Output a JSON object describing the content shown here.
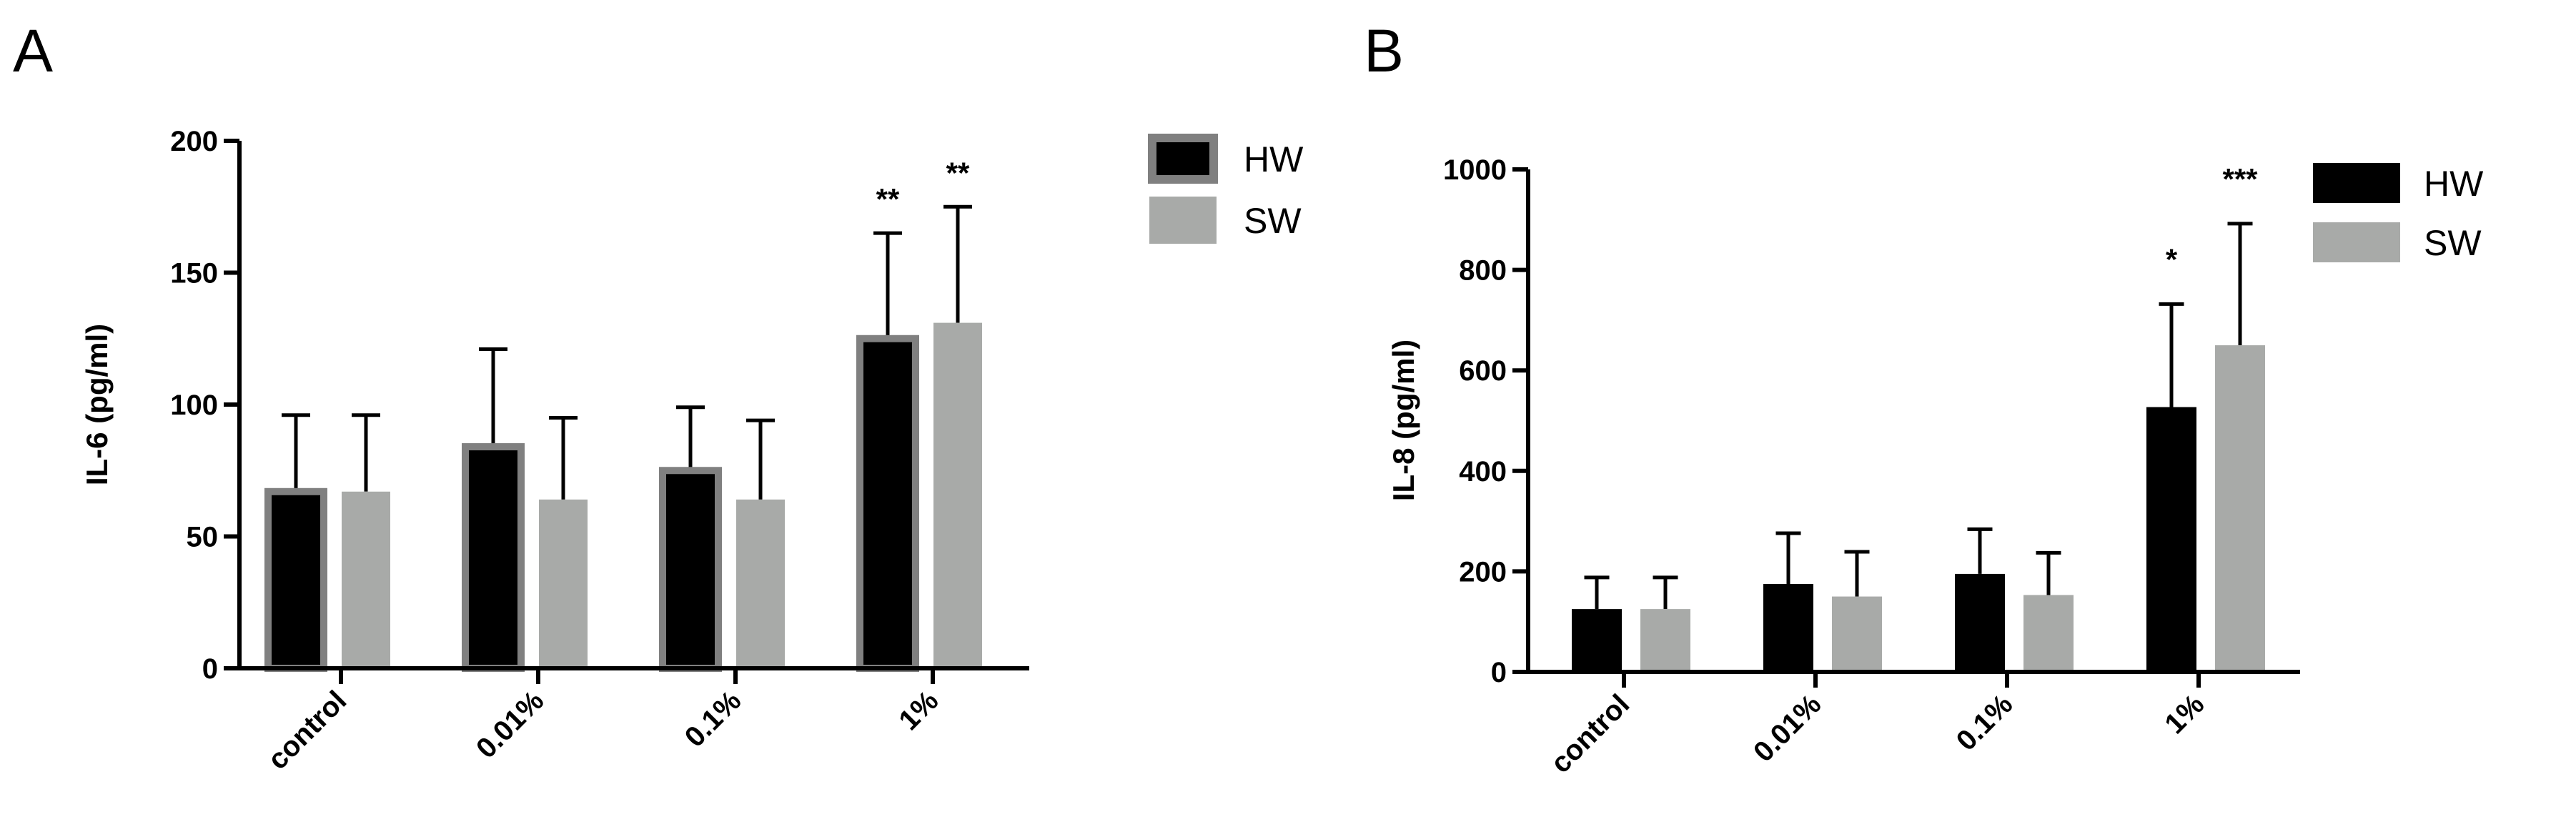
{
  "chart_data": [
    {
      "type": "bar",
      "panel_label": "A",
      "categories": [
        "control",
        "0.01%",
        "0.1%",
        "1%"
      ],
      "ylabel": "IL-6 (pg/ml)",
      "xlabel": "",
      "ylim": [
        0,
        200
      ],
      "yticks": [
        0,
        50,
        100,
        150,
        200
      ],
      "ytick_labels": [
        "0",
        "50",
        "100",
        "150",
        "200"
      ],
      "grid": false,
      "legend": "top-right",
      "series": [
        {
          "name": "HW",
          "color": "#000000",
          "outline": "#808080",
          "values": [
            67,
            84,
            75,
            125
          ],
          "errors": [
            29,
            37,
            24,
            40
          ]
        },
        {
          "name": "SW",
          "color": "#a8aaa8",
          "values": [
            67,
            64,
            64,
            131
          ],
          "errors": [
            29,
            31,
            30,
            44
          ]
        }
      ],
      "annotations": [
        {
          "category": "1%",
          "series": "HW",
          "text": "**"
        },
        {
          "category": "1%",
          "series": "SW",
          "text": "**"
        }
      ]
    },
    {
      "type": "bar",
      "panel_label": "B",
      "categories": [
        "control",
        "0.01%",
        "0.1%",
        "1%"
      ],
      "ylabel": "IL-8 (pg/ml)",
      "xlabel": "",
      "ylim": [
        0,
        1000
      ],
      "yticks": [
        0,
        200,
        400,
        600,
        800,
        1000
      ],
      "ytick_labels": [
        "0",
        "200",
        "400",
        "600",
        "800",
        "1000"
      ],
      "grid": false,
      "legend": "top-right",
      "series": [
        {
          "name": "HW",
          "color": "#000000",
          "values": [
            125,
            175,
            195,
            527
          ],
          "errors": [
            63,
            101,
            89,
            205
          ]
        },
        {
          "name": "SW",
          "color": "#a8aaa8",
          "values": [
            125,
            150,
            153,
            650
          ],
          "errors": [
            63,
            89,
            84,
            242
          ]
        }
      ],
      "annotations": [
        {
          "category": "1%",
          "series": "HW",
          "text": "*"
        },
        {
          "category": "1%",
          "series": "SW",
          "text": "***"
        }
      ]
    }
  ]
}
